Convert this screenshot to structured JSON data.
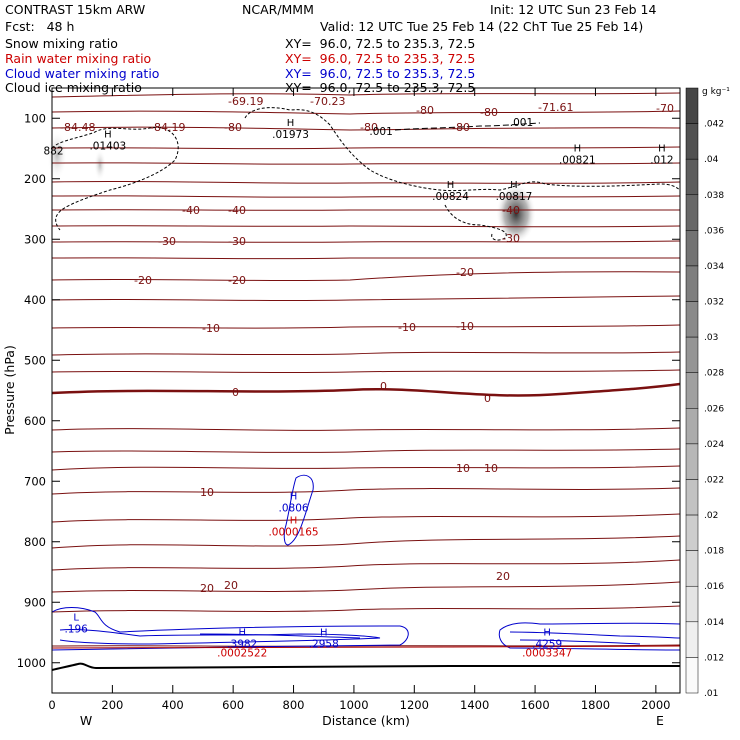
{
  "header": {
    "model": "CONTRAST 15km ARW",
    "center": "NCAR/MMM",
    "init": "Init: 12 UTC Sun 23 Feb 14",
    "fcst": "Fcst:   48 h",
    "valid": "Valid: 12 UTC Tue 25 Feb 14 (22 ChT Tue 25 Feb 14)"
  },
  "legend": [
    {
      "label": "Snow mixing ratio",
      "xy": "XY=  96.0, 72.5 to 235.3, 72.5",
      "color": "#000000"
    },
    {
      "label": "Rain water mixing ratio",
      "xy": "XY=  96.0, 72.5 to 235.3, 72.5",
      "color": "#cc0000"
    },
    {
      "label": "Cloud water mixing ratio",
      "xy": "XY=  96.0, 72.5 to 235.3, 72.5",
      "color": "#0000cc"
    },
    {
      "label": "Cloud ice mixing ratio",
      "xy": "XY=  96.0, 72.5 to 235.3, 72.5",
      "color": "#000000"
    }
  ],
  "chart_data": {
    "type": "cross-section contour",
    "xlabel": "Distance (km)",
    "ylabel": "Pressure (hPa)",
    "xlim": [
      0,
      2080
    ],
    "ylim": [
      50,
      1050
    ],
    "xticks": [
      0,
      200,
      400,
      600,
      800,
      1000,
      1200,
      1400,
      1600,
      1800,
      2000
    ],
    "yticks": [
      100,
      200,
      300,
      400,
      500,
      600,
      700,
      800,
      900,
      1000
    ],
    "x_end_labels": {
      "left": "W",
      "right": "E"
    },
    "isotherms_c": [
      -80,
      -70,
      -60,
      -50,
      -40,
      -30,
      -20,
      -10,
      0,
      10,
      20
    ],
    "isotherm_label_text": {
      "m80": "-80",
      "m70": "-70",
      "m40": "-40",
      "m30": "-30",
      "m20": "-20",
      "m10": "-10",
      "z0": "0",
      "p10": "10",
      "p20": "20",
      "v6919": "-69.19",
      "v7023": "-70.23",
      "v8448": "-84.48",
      "v8419": "-84.19",
      "v7161": "-71.61"
    },
    "ice_extrema": [
      {
        "label": "H",
        "value": ".01403",
        "x_km": 185,
        "p_hpa": 152
      },
      {
        "label": "H",
        "value": ".01973",
        "x_km": 790,
        "p_hpa": 133
      },
      {
        "label": "H",
        "value": ".00821",
        "x_km": 1740,
        "p_hpa": 175
      },
      {
        "label": "H",
        "value": ".012",
        "x_km": 2020,
        "p_hpa": 175
      },
      {
        "label": "H",
        "value": ".00824",
        "x_km": 1320,
        "p_hpa": 235
      },
      {
        "label": "H",
        "value": ".00817",
        "x_km": 1530,
        "p_hpa": 235
      },
      {
        "label": "",
        "value": ".001",
        "x_km": 1090,
        "p_hpa": 128
      },
      {
        "label": "",
        "value": ".001",
        "x_km": 1555,
        "p_hpa": 113
      },
      {
        "label": "",
        "value": "882",
        "x_km": 5,
        "p_hpa": 160
      }
    ],
    "cloud_water_extrema": [
      {
        "label": "H",
        "value": ".0806",
        "x_km": 800,
        "p_hpa": 750
      },
      {
        "label": "L",
        "value": ".196",
        "x_km": 80,
        "p_hpa": 950
      },
      {
        "label": "H",
        "value": ".3982",
        "x_km": 630,
        "p_hpa": 975
      },
      {
        "label": "H",
        "value": ".2958",
        "x_km": 900,
        "p_hpa": 975
      },
      {
        "label": "H",
        "value": ".4259",
        "x_km": 1640,
        "p_hpa": 975
      }
    ],
    "rain_extrema": [
      {
        "label": "H",
        "value": ".0000165",
        "x_km": 800,
        "p_hpa": 790
      },
      {
        "label": "",
        "value": ".0002522",
        "x_km": 630,
        "p_hpa": 990
      },
      {
        "label": "",
        "value": ".0003347",
        "x_km": 1640,
        "p_hpa": 990
      }
    ],
    "colorbar": {
      "units": "g kg⁻¹",
      "ticks": [
        ".042",
        ".04",
        ".038",
        ".036",
        ".034",
        ".032",
        ".03",
        ".028",
        ".026",
        ".024",
        ".022",
        ".02",
        ".018",
        ".016",
        ".014",
        ".012",
        ".01"
      ]
    }
  }
}
